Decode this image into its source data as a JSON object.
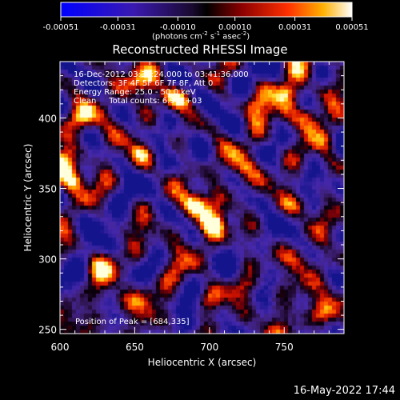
{
  "chart_data": {
    "type": "heatmap",
    "title": "Reconstructed RHESSI Image",
    "xlabel": "Heliocentric X (arcsec)",
    "ylabel": "Heliocentric Y (arcsec)",
    "xlim": [
      600,
      790
    ],
    "ylim": [
      247,
      440
    ],
    "x_ticks": [
      "600",
      "650",
      "700",
      "750"
    ],
    "y_ticks": [
      "250",
      "300",
      "350",
      "400"
    ],
    "colorbar": {
      "range": [
        -0.00051,
        0.00051
      ],
      "ticks": [
        "-0.00051",
        "-0.00031",
        "-0.00010",
        "0.00010",
        "0.00031",
        "0.00051"
      ],
      "units_text": "(photons cm",
      "units_exp1": "-2",
      "units_mid": " s",
      "units_exp2": "-1",
      "units_mid2": " asec",
      "units_exp3": "-2",
      "units_close": ")"
    },
    "annotations": [
      "16-Dec-2012 03:36:24.000 to 03:41:36.000",
      "Detectors: 3F 4F 5F 6F 7F 8F, Att 0",
      "Energy Range: 25.0 - 50.0 keV",
      "Clean     Total counts: 6.94E+03"
    ],
    "peak_label": "Position of Peak = [684,335]",
    "peak_position": [
      684,
      335
    ],
    "bright_sources": [
      {
        "x": 690,
        "y": 339,
        "amp": 1.0
      },
      {
        "x": 703,
        "y": 323,
        "amp": 0.85
      },
      {
        "x": 608,
        "y": 356,
        "amp": 0.95
      },
      {
        "x": 602,
        "y": 370,
        "amp": 0.7
      },
      {
        "x": 752,
        "y": 418,
        "amp": 0.9
      },
      {
        "x": 768,
        "y": 401,
        "amp": 0.85
      },
      {
        "x": 730,
        "y": 408,
        "amp": 0.6
      },
      {
        "x": 676,
        "y": 415,
        "amp": 0.7
      },
      {
        "x": 650,
        "y": 427,
        "amp": 0.6
      },
      {
        "x": 760,
        "y": 338,
        "amp": 0.6
      },
      {
        "x": 700,
        "y": 272,
        "amp": 0.6
      },
      {
        "x": 727,
        "y": 280,
        "amp": 0.55
      },
      {
        "x": 625,
        "y": 295,
        "amp": 0.6
      },
      {
        "x": 640,
        "y": 270,
        "amp": 0.5
      },
      {
        "x": 760,
        "y": 300,
        "amp": 0.55
      },
      {
        "x": 778,
        "y": 260,
        "amp": 0.6
      },
      {
        "x": 616,
        "y": 400,
        "amp": 0.6
      },
      {
        "x": 780,
        "y": 365,
        "amp": 0.5
      },
      {
        "x": 655,
        "y": 375,
        "amp": 0.5
      },
      {
        "x": 720,
        "y": 365,
        "amp": 0.45
      }
    ]
  },
  "footer": {
    "date": "16-May-2022 17:44"
  }
}
